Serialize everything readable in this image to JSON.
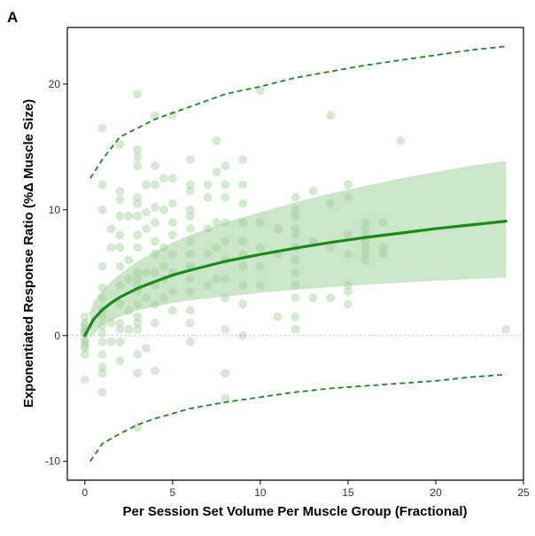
{
  "chart_data": {
    "type": "scatter",
    "panel_label": "A",
    "title": "",
    "xlabel": "Per Session Set Volume Per Muscle Group (Fractional)",
    "ylabel": "Exponentiated Response Ratio (%Δ Muscle Size)",
    "xlim": [
      -1,
      25
    ],
    "ylim": [
      -11.5,
      24.5
    ],
    "x_ticks": [
      0,
      5,
      10,
      15,
      20,
      25
    ],
    "y_ticks": [
      -10,
      0,
      10,
      20
    ],
    "reference_line": {
      "y": 0,
      "style": "dotted",
      "color": "#bbbbbb"
    },
    "colors": {
      "points": "#9fd19a",
      "fit": "#1a8a1a",
      "band": "#a9d6a3",
      "prediction": "#1a8a1a"
    },
    "fit_curve": {
      "name": "fitted curve",
      "x": [
        0,
        0.5,
        1,
        1.5,
        2,
        3,
        4,
        5,
        6,
        8,
        10,
        12,
        14,
        16,
        18,
        20,
        22,
        24
      ],
      "y": [
        0,
        1.3,
        2.05,
        2.6,
        3.05,
        3.75,
        4.3,
        4.8,
        5.2,
        5.9,
        6.45,
        6.95,
        7.4,
        7.8,
        8.15,
        8.5,
        8.8,
        9.1
      ]
    },
    "confidence_band": {
      "name": "95% confidence band",
      "x": [
        0.3,
        0.5,
        1,
        1.5,
        2,
        3,
        4,
        5,
        6,
        8,
        10,
        12,
        14,
        16,
        18,
        20,
        22,
        24
      ],
      "lower": [
        -0.2,
        0.1,
        0.8,
        1.2,
        1.5,
        2.0,
        2.3,
        2.6,
        2.8,
        3.1,
        3.4,
        3.65,
        3.85,
        4.05,
        4.2,
        4.35,
        4.5,
        4.6
      ],
      "upper": [
        1.8,
        2.7,
        3.6,
        4.3,
        4.9,
        5.9,
        6.7,
        7.4,
        8.0,
        9.0,
        9.8,
        10.6,
        11.3,
        11.9,
        12.5,
        13.0,
        13.5,
        13.9
      ]
    },
    "prediction_interval": {
      "name": "95% prediction interval",
      "x": [
        0.3,
        1,
        2,
        3,
        4,
        5,
        6,
        8,
        10,
        12,
        14,
        16,
        18,
        20,
        22,
        24
      ],
      "lower": [
        -10.0,
        -8.6,
        -7.8,
        -7.1,
        -6.6,
        -6.2,
        -5.8,
        -5.3,
        -4.9,
        -4.5,
        -4.2,
        -4.0,
        -3.8,
        -3.6,
        -3.3,
        -3.1
      ],
      "upper": [
        12.5,
        14.0,
        15.8,
        16.5,
        17.2,
        17.7,
        18.2,
        19.2,
        19.8,
        20.5,
        21.0,
        21.5,
        21.9,
        22.3,
        22.7,
        23.0
      ]
    },
    "points": {
      "name": "study effects",
      "x": [
        0,
        0,
        0,
        0,
        0,
        0,
        0,
        0,
        0,
        0,
        0,
        0,
        1,
        1,
        1,
        1,
        1,
        1,
        1,
        1,
        1,
        1,
        1,
        1,
        1,
        1,
        1,
        1.5,
        1.5,
        1.5,
        1.5,
        2,
        2,
        2,
        2,
        2,
        2,
        2,
        2,
        2,
        2,
        2,
        2,
        2,
        2.5,
        2.5,
        2.5,
        2.5,
        2.5,
        3,
        3,
        3,
        3,
        3,
        3,
        3,
        3,
        3,
        3,
        3,
        3,
        3,
        3,
        3,
        3,
        3,
        3,
        3,
        3,
        3.5,
        3.5,
        3.5,
        3.5,
        3.5,
        3.5,
        4,
        4,
        4,
        4,
        4,
        4,
        4,
        4,
        4,
        4,
        4,
        4,
        4.5,
        4.5,
        4.5,
        4.5,
        4.5,
        4.5,
        5,
        5,
        5,
        5,
        5,
        5,
        5,
        5,
        5,
        6,
        6,
        6,
        6,
        6,
        6,
        6,
        6,
        6,
        6,
        6,
        6,
        6,
        6,
        7,
        7,
        7,
        7,
        7,
        7.5,
        7.5,
        7.5,
        7.5,
        7.5,
        8,
        8,
        8,
        8,
        8,
        8,
        8,
        8,
        8,
        8,
        8,
        9,
        9,
        9,
        9,
        9,
        9,
        9,
        9,
        9,
        9,
        10,
        10,
        10,
        10,
        10,
        11,
        11,
        11,
        12,
        12,
        12,
        12,
        12,
        12,
        12,
        12,
        12,
        12,
        12,
        12,
        13,
        13,
        13,
        14,
        14,
        14,
        14,
        15,
        15,
        15,
        15,
        15,
        15,
        15,
        16,
        16,
        16,
        16,
        16,
        16,
        16,
        17,
        17,
        17,
        18,
        24
      ],
      "y": [
        1.5,
        1.0,
        0.5,
        0.2,
        -0.3,
        -0.5,
        -1.0,
        -1.5,
        -3.5,
        0.8,
        0.3,
        -0.8,
        16.5,
        12.0,
        10.0,
        5.5,
        3.8,
        3.0,
        2.0,
        1.5,
        0.8,
        0.2,
        -0.5,
        -1.5,
        -2.5,
        -3.0,
        -4.5,
        8.5,
        7.0,
        1.0,
        -0.5,
        15.2,
        11.5,
        10.8,
        9.5,
        8.0,
        7.0,
        5.5,
        4.0,
        2.5,
        1.0,
        0.5,
        -0.5,
        -2.0,
        9.5,
        6.0,
        4.5,
        2.0,
        0.5,
        19.2,
        14.8,
        14.2,
        13.5,
        11.0,
        10.5,
        9.5,
        8.0,
        7.0,
        5.0,
        4.5,
        4.0,
        3.5,
        2.5,
        1.5,
        1.0,
        0.5,
        -1.5,
        -3.0,
        -7.3,
        12.0,
        9.8,
        8.5,
        5.0,
        3.0,
        -1.0,
        17.5,
        13.5,
        12.0,
        10.2,
        9.0,
        7.5,
        6.5,
        5.0,
        4.0,
        2.5,
        1.0,
        -2.8,
        12.5,
        10.0,
        7.0,
        5.5,
        4.5,
        3.0,
        17.5,
        12.5,
        10.5,
        9.0,
        8.0,
        6.5,
        5.0,
        3.5,
        2.0,
        14.0,
        12.0,
        11.5,
        10.0,
        9.5,
        8.5,
        7.5,
        6.5,
        5.5,
        4.5,
        3.5,
        2.0,
        1.0,
        -0.5,
        12.0,
        11.0,
        8.5,
        6.5,
        4.0,
        15.5,
        13.0,
        9.0,
        7.0,
        4.5,
        13.5,
        12.0,
        11.0,
        9.0,
        7.5,
        6.0,
        4.5,
        3.0,
        0.5,
        -3.0,
        -5.0,
        14.0,
        12.0,
        10.5,
        9.0,
        7.5,
        6.5,
        5.5,
        4.0,
        2.5,
        0.0,
        19.5,
        9.0,
        7.0,
        5.5,
        4.0,
        8.5,
        6.5,
        1.5,
        11.0,
        10.0,
        9.5,
        8.5,
        8.0,
        7.0,
        6.0,
        5.0,
        4.0,
        3.0,
        1.5,
        0.5,
        11.5,
        7.5,
        3.0,
        17.5,
        10.5,
        7.0,
        3.0,
        12.0,
        11.0,
        8.0,
        6.5,
        4.0,
        3.5,
        2.5,
        9.0,
        8.5,
        8.0,
        7.5,
        7.0,
        6.5,
        6.0,
        9.0,
        7.0,
        6.5,
        15.5,
        0.5
      ]
    }
  }
}
